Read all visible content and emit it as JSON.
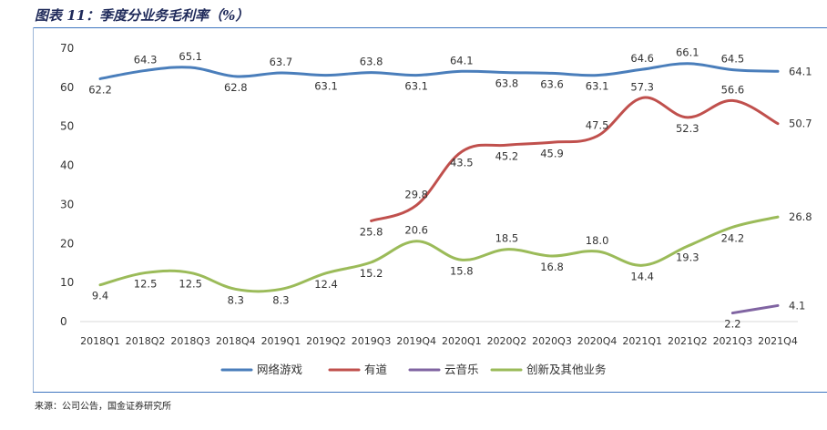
{
  "title": "图表 11：季度分业务毛利率（%）",
  "source": "来源：公司公告，国金证券研究所",
  "chart_data": {
    "type": "line",
    "title": "图表 11：季度分业务毛利率（%）",
    "xlabel": "",
    "ylabel": "",
    "ylim": [
      0,
      70
    ],
    "yticks": [
      0,
      10,
      20,
      30,
      40,
      50,
      60,
      70
    ],
    "grid": false,
    "legend_position": "bottom",
    "categories": [
      "2018Q1",
      "2018Q2",
      "2018Q3",
      "2018Q4",
      "2019Q1",
      "2019Q2",
      "2019Q3",
      "2019Q4",
      "2020Q1",
      "2020Q2",
      "2020Q3",
      "2020Q4",
      "2021Q1",
      "2021Q2",
      "2021Q3",
      "2021Q4"
    ],
    "series": [
      {
        "name": "网络游戏",
        "color": "#4a7ebb",
        "values": [
          62.2,
          64.3,
          65.1,
          62.8,
          63.7,
          63.1,
          63.8,
          63.1,
          64.1,
          63.8,
          63.6,
          63.1,
          64.6,
          66.1,
          64.5,
          64.1
        ]
      },
      {
        "name": "有道",
        "color": "#c0504d",
        "values": [
          null,
          null,
          null,
          null,
          null,
          null,
          25.8,
          29.8,
          43.5,
          45.2,
          45.9,
          47.5,
          57.3,
          52.3,
          56.6,
          50.7
        ]
      },
      {
        "name": "云音乐",
        "color": "#8064a2",
        "values": [
          null,
          null,
          null,
          null,
          null,
          null,
          null,
          null,
          null,
          null,
          null,
          null,
          null,
          null,
          2.2,
          4.1
        ]
      },
      {
        "name": "创新及其他业务",
        "color": "#9bbb59",
        "values": [
          9.4,
          12.5,
          12.5,
          8.3,
          8.3,
          12.4,
          15.2,
          20.6,
          15.8,
          18.5,
          16.8,
          18.0,
          14.4,
          19.3,
          24.2,
          26.8
        ]
      }
    ]
  }
}
